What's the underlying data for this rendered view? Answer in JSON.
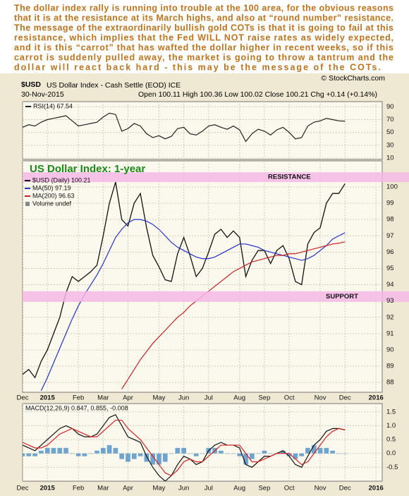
{
  "commentary": [
    "The dollar index rally is running into trouble at the 100 area, for the obvious reasons",
    "that it is at the resistance at its March highs, and also at “round number” resistance.",
    "The message of the extraordinarily bullish gold COTs is that it is going to fail at this",
    "resistance, which implies that the Fed WILL NOT raise rates as widely expected,",
    "and it is this “carrot” that has wafted the dollar higher in recent weeks, so if this",
    "carrot is suddenly pulled away, the market is going to throw a tantrum and the",
    "dollar will react back hard - this may be the message of the COTs."
  ],
  "header": {
    "symbol": "$USD",
    "name": "US Dollar Index - Cash Settle (EOD) ICE",
    "date": "30-Nov-2015",
    "quote": "Open 100.11 High 100.36 Low 100.02 Close 100.21 Chg +0.14 (+0.14%)",
    "credit": "© StockCharts.com"
  },
  "chart_data": [
    {
      "type": "line",
      "ylim": [
        8,
        98
      ],
      "yticks": [
        90,
        70,
        50,
        30,
        10
      ],
      "grid": true,
      "series": [
        {
          "name": "RSI(14) 67.54",
          "color": "#222222",
          "values": [
            58,
            62,
            60,
            66,
            70,
            72,
            74,
            76,
            68,
            60,
            62,
            64,
            66,
            74,
            80,
            78,
            52,
            56,
            64,
            60,
            48,
            42,
            45,
            40,
            44,
            56,
            58,
            48,
            46,
            52,
            60,
            62,
            58,
            55,
            60,
            54,
            36,
            48,
            55,
            52,
            46,
            54,
            58,
            50,
            40,
            42,
            60,
            66,
            68,
            72,
            70,
            68,
            67.54,
            null,
            null,
            null,
            null,
            null,
            null
          ]
        }
      ]
    },
    {
      "type": "line",
      "title": "US Dollar Index: 1-year",
      "categories": [
        "Dec",
        null,
        null,
        null,
        "2015",
        null,
        null,
        null,
        null,
        "Feb",
        null,
        null,
        null,
        "Mar",
        null,
        null,
        null,
        "Apr",
        null,
        null,
        null,
        null,
        "May",
        null,
        null,
        null,
        "Jun",
        null,
        null,
        null,
        "Jul",
        null,
        null,
        null,
        null,
        "Aug",
        null,
        null,
        null,
        "Sep",
        null,
        null,
        null,
        "Oct",
        null,
        null,
        null,
        null,
        "Nov",
        null,
        null,
        null,
        "Dec",
        null,
        null,
        null,
        null,
        "2016",
        null
      ],
      "ylim": [
        87.4,
        101.6
      ],
      "yticks": [
        100,
        99,
        98,
        97,
        96,
        95,
        94,
        93,
        92,
        91,
        90,
        89,
        88
      ],
      "grid": true,
      "legend_extra": "Volume undef",
      "bands": [
        {
          "label": "RESISTANCE",
          "range": [
            100.3,
            100.9
          ],
          "color": "#f5b8e6"
        },
        {
          "label": "SUPPORT",
          "range": [
            92.95,
            93.6
          ],
          "color": "#f5b8e6"
        }
      ],
      "series": [
        {
          "name": "$USD (Daily) 100.21",
          "color": "#111111",
          "values": [
            88.5,
            88.8,
            88.3,
            89.3,
            90.0,
            91.0,
            92.0,
            93.5,
            94.5,
            94.2,
            94.5,
            94.8,
            95.2,
            97.0,
            99.0,
            100.3,
            98.0,
            97.6,
            99.0,
            99.6,
            97.5,
            95.8,
            95.1,
            94.3,
            94.2,
            95.9,
            96.9,
            95.8,
            94.5,
            95.0,
            96.0,
            97.1,
            97.4,
            96.9,
            97.3,
            96.9,
            94.5,
            95.5,
            96.1,
            96.1,
            95.3,
            96.1,
            96.4,
            95.6,
            94.2,
            94.0,
            96.5,
            97.2,
            97.5,
            99.0,
            99.6,
            99.6,
            100.2,
            null,
            null,
            null,
            null,
            null,
            null
          ]
        },
        {
          "name": "MA(50) 97.19",
          "color": "#2233cc",
          "values": [
            null,
            null,
            null,
            87.5,
            88.3,
            89.2,
            90.1,
            91.0,
            91.9,
            92.7,
            93.4,
            94.0,
            94.6,
            95.3,
            96.1,
            96.9,
            97.4,
            97.8,
            98.0,
            98.0,
            97.9,
            97.7,
            97.4,
            97.0,
            96.6,
            96.3,
            96.1,
            95.9,
            95.7,
            95.6,
            95.6,
            95.7,
            95.9,
            96.1,
            96.3,
            96.5,
            96.5,
            96.4,
            96.3,
            96.1,
            96.0,
            95.9,
            95.8,
            95.7,
            95.6,
            95.5,
            95.6,
            95.8,
            96.1,
            96.4,
            96.8,
            97.0,
            97.19,
            null,
            null,
            null,
            null,
            null,
            null
          ]
        },
        {
          "name": "MA(200) 96.63",
          "color": "#cc2222",
          "values": [
            null,
            null,
            null,
            null,
            null,
            null,
            null,
            null,
            null,
            null,
            null,
            null,
            null,
            null,
            null,
            null,
            87.6,
            88.2,
            88.8,
            89.4,
            89.9,
            90.4,
            90.8,
            91.2,
            91.6,
            92.0,
            92.3,
            92.7,
            93.0,
            93.3,
            93.6,
            93.9,
            94.2,
            94.5,
            94.8,
            95.0,
            95.2,
            95.4,
            95.5,
            95.6,
            95.7,
            95.8,
            95.8,
            95.9,
            95.9,
            96.0,
            96.1,
            96.2,
            96.3,
            96.4,
            96.5,
            96.55,
            96.63,
            null,
            null,
            null,
            null,
            null,
            null
          ]
        }
      ]
    },
    {
      "type": "line",
      "legend": "MACD(12,26,9) 0.847, 0.855, -0.008",
      "categories": [
        "Dec",
        null,
        null,
        null,
        "2015",
        null,
        null,
        null,
        null,
        "Feb",
        null,
        null,
        null,
        "Mar",
        null,
        null,
        null,
        "Apr",
        null,
        null,
        null,
        null,
        "May",
        null,
        null,
        null,
        "Jun",
        null,
        null,
        null,
        "Jul",
        null,
        null,
        null,
        null,
        "Aug",
        null,
        null,
        null,
        "Sep",
        null,
        null,
        null,
        "Oct",
        null,
        null,
        null,
        null,
        "Nov",
        null,
        null,
        null,
        "Dec",
        null,
        null,
        null,
        null,
        "2016",
        null
      ],
      "ylim": [
        -1.0,
        1.8
      ],
      "yticks": [
        1.5,
        {
          "value": 1,
          "label": "1.0"
        },
        0.5,
        {
          "value": 0,
          "label": "0.0"
        },
        -0.5
      ],
      "grid": true,
      "series": [
        {
          "style": "bar",
          "color": "#4a8fc8",
          "values": [
            -0.1,
            -0.1,
            -0.1,
            0.1,
            0.2,
            0.2,
            0.2,
            0.2,
            0,
            -0.1,
            -0.1,
            0,
            0.1,
            0.2,
            0.3,
            0.2,
            -0.2,
            -0.3,
            -0.2,
            -0.1,
            -0.3,
            -0.4,
            -0.4,
            -0.3,
            0,
            0.2,
            0.2,
            0,
            -0.1,
            0,
            0.2,
            0.2,
            0.1,
            0,
            0,
            -0.1,
            -0.4,
            -0.2,
            0,
            0.1,
            0,
            0,
            0.1,
            -0.1,
            -0.2,
            -0.1,
            0.2,
            0.3,
            0.2,
            0.2,
            0.1,
            0,
            -0.008,
            null,
            null,
            null,
            null,
            null,
            null
          ]
        },
        {
          "style": "line",
          "color": "#111111",
          "values": [
            0.3,
            0.2,
            0.1,
            0.3,
            0.5,
            0.7,
            0.9,
            1.0,
            0.9,
            0.7,
            0.6,
            0.6,
            0.7,
            1.0,
            1.3,
            1.4,
            1.0,
            0.6,
            0.5,
            0.4,
            -0.1,
            -0.5,
            -0.8,
            -1.0,
            -0.8,
            -0.4,
            -0.1,
            -0.2,
            -0.4,
            -0.3,
            0.1,
            0.3,
            0.4,
            0.3,
            0.3,
            0.2,
            -0.4,
            -0.5,
            -0.3,
            -0.1,
            -0.1,
            0.0,
            0.1,
            -0.1,
            -0.4,
            -0.5,
            -0.1,
            0.3,
            0.5,
            0.8,
            0.9,
            0.9,
            0.847,
            null,
            null,
            null,
            null,
            null,
            null
          ]
        },
        {
          "style": "line",
          "color": "#dd2222",
          "values": [
            0.4,
            0.3,
            0.2,
            0.2,
            0.3,
            0.5,
            0.7,
            0.8,
            0.9,
            0.8,
            0.7,
            0.6,
            0.6,
            0.8,
            1.0,
            1.2,
            1.2,
            0.9,
            0.7,
            0.5,
            0.2,
            -0.1,
            -0.4,
            -0.7,
            -0.8,
            -0.6,
            -0.3,
            -0.2,
            -0.3,
            -0.3,
            -0.1,
            0.1,
            0.3,
            0.3,
            0.3,
            0.3,
            0.0,
            -0.3,
            -0.3,
            -0.2,
            -0.1,
            0.0,
            0.0,
            0.0,
            -0.2,
            -0.4,
            -0.3,
            0.0,
            0.3,
            0.6,
            0.8,
            0.9,
            0.855,
            null,
            null,
            null,
            null,
            null,
            null
          ]
        }
      ]
    }
  ]
}
